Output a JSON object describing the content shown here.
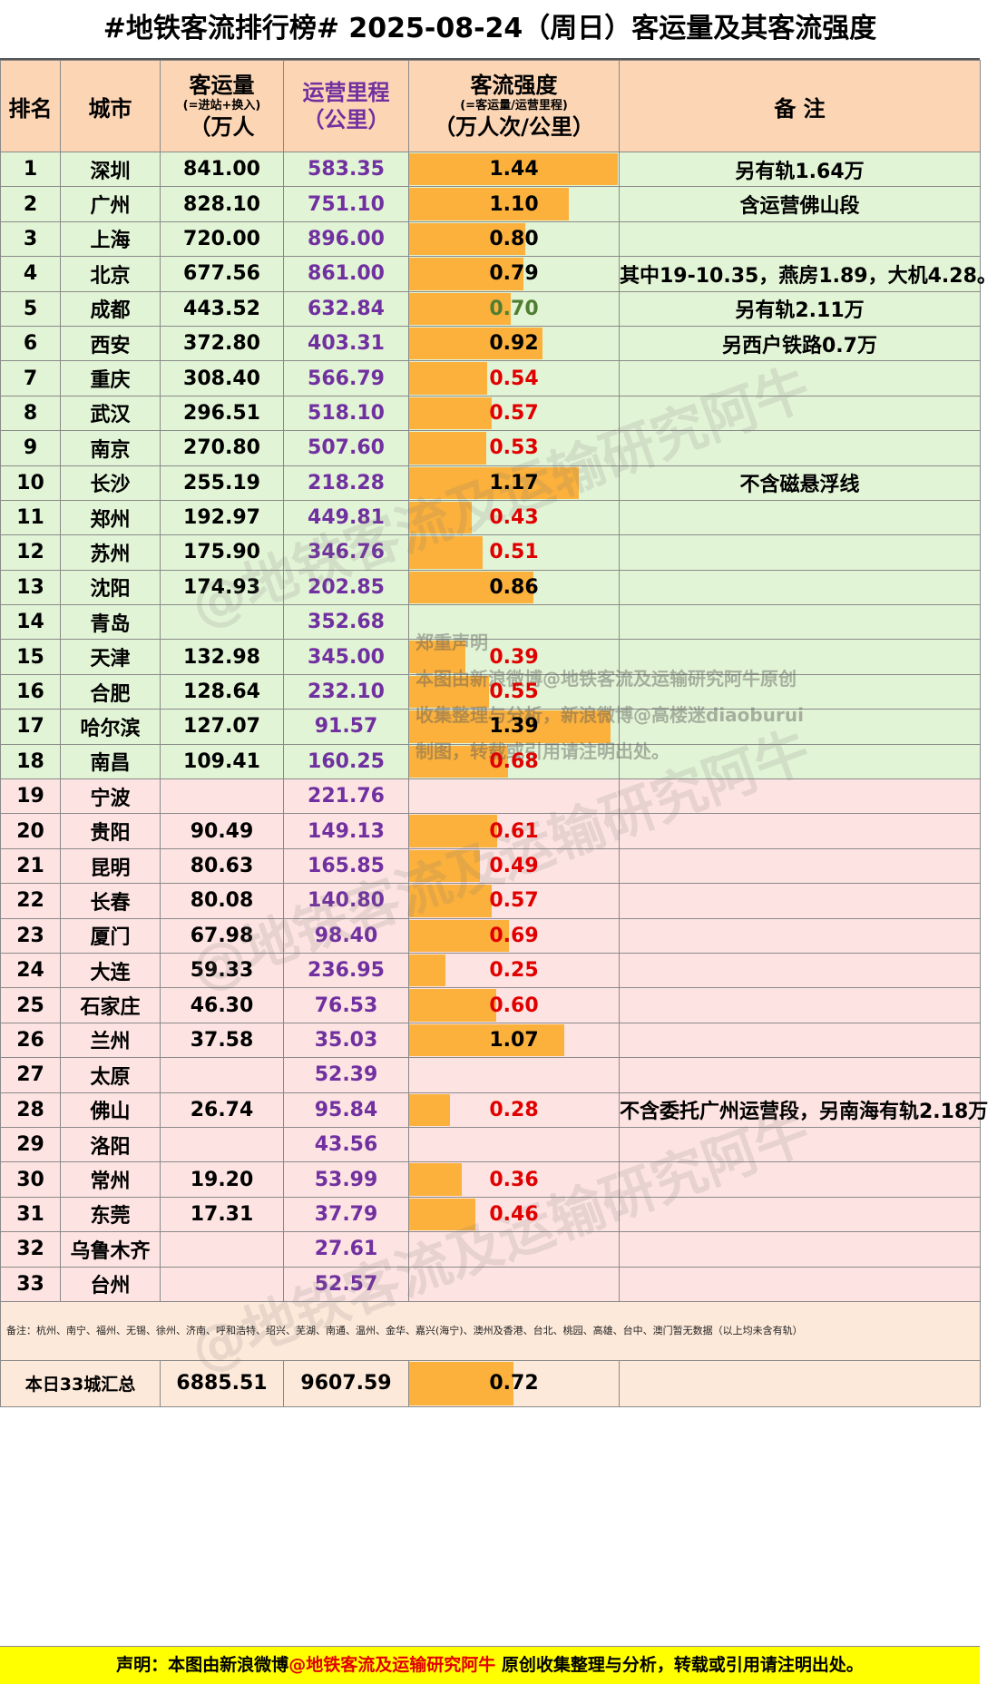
{
  "title": "#地铁客流排行榜# 2025-08-24（周日）客运量及其客流强度",
  "headers": {
    "rank": "排名",
    "city": "城市",
    "volume_main": "客运量",
    "volume_sub": "(=进站+换入)",
    "volume_unit": "（万人",
    "mileage_main": "运营里程",
    "mileage_unit": "（公里）",
    "intensity_main": "客流强度",
    "intensity_sub": "(=客运量/运营里程)",
    "intensity_unit": "（万人次/公里）",
    "note": "备  注"
  },
  "rows": [
    {
      "rank": "1",
      "city": "深圳",
      "volume": "841.00",
      "mileage": "583.35",
      "intensity": "1.44",
      "level": "hi",
      "note": "另有轨1.64万"
    },
    {
      "rank": "2",
      "city": "广州",
      "volume": "828.10",
      "mileage": "751.10",
      "intensity": "1.10",
      "level": "hi",
      "note": "含运营佛山段"
    },
    {
      "rank": "3",
      "city": "上海",
      "volume": "720.00",
      "mileage": "896.00",
      "intensity": "0.80",
      "level": "hi",
      "note": ""
    },
    {
      "rank": "4",
      "city": "北京",
      "volume": "677.56",
      "mileage": "861.00",
      "intensity": "0.79",
      "level": "hi",
      "note": "其中19-10.35，燕房1.89，大机4.28。"
    },
    {
      "rank": "5",
      "city": "成都",
      "volume": "443.52",
      "mileage": "632.84",
      "intensity": "0.70",
      "level": "mid",
      "note": "另有轨2.11万"
    },
    {
      "rank": "6",
      "city": "西安",
      "volume": "372.80",
      "mileage": "403.31",
      "intensity": "0.92",
      "level": "hi",
      "note": "另西户铁路0.7万"
    },
    {
      "rank": "7",
      "city": "重庆",
      "volume": "308.40",
      "mileage": "566.79",
      "intensity": "0.54",
      "level": "lo",
      "note": ""
    },
    {
      "rank": "8",
      "city": "武汉",
      "volume": "296.51",
      "mileage": "518.10",
      "intensity": "0.57",
      "level": "lo",
      "note": ""
    },
    {
      "rank": "9",
      "city": "南京",
      "volume": "270.80",
      "mileage": "507.60",
      "intensity": "0.53",
      "level": "lo",
      "note": ""
    },
    {
      "rank": "10",
      "city": "长沙",
      "volume": "255.19",
      "mileage": "218.28",
      "intensity": "1.17",
      "level": "hi",
      "note": "不含磁悬浮线"
    },
    {
      "rank": "11",
      "city": "郑州",
      "volume": "192.97",
      "mileage": "449.81",
      "intensity": "0.43",
      "level": "lo",
      "note": ""
    },
    {
      "rank": "12",
      "city": "苏州",
      "volume": "175.90",
      "mileage": "346.76",
      "intensity": "0.51",
      "level": "lo",
      "note": ""
    },
    {
      "rank": "13",
      "city": "沈阳",
      "volume": "174.93",
      "mileage": "202.85",
      "intensity": "0.86",
      "level": "hi",
      "note": ""
    },
    {
      "rank": "14",
      "city": "青岛",
      "volume": "",
      "mileage": "352.68",
      "intensity": "",
      "level": "hi",
      "note": ""
    },
    {
      "rank": "15",
      "city": "天津",
      "volume": "132.98",
      "mileage": "345.00",
      "intensity": "0.39",
      "level": "lo",
      "note": ""
    },
    {
      "rank": "16",
      "city": "合肥",
      "volume": "128.64",
      "mileage": "232.10",
      "intensity": "0.55",
      "level": "lo",
      "note": ""
    },
    {
      "rank": "17",
      "city": "哈尔滨",
      "volume": "127.07",
      "mileage": "91.57",
      "intensity": "1.39",
      "level": "hi",
      "note": ""
    },
    {
      "rank": "18",
      "city": "南昌",
      "volume": "109.41",
      "mileage": "160.25",
      "intensity": "0.68",
      "level": "lo",
      "note": ""
    },
    {
      "rank": "19",
      "city": "宁波",
      "volume": "",
      "mileage": "221.76",
      "intensity": "",
      "level": "hi",
      "note": ""
    },
    {
      "rank": "20",
      "city": "贵阳",
      "volume": "90.49",
      "mileage": "149.13",
      "intensity": "0.61",
      "level": "lo",
      "note": ""
    },
    {
      "rank": "21",
      "city": "昆明",
      "volume": "80.63",
      "mileage": "165.85",
      "intensity": "0.49",
      "level": "lo",
      "note": ""
    },
    {
      "rank": "22",
      "city": "长春",
      "volume": "80.08",
      "mileage": "140.80",
      "intensity": "0.57",
      "level": "lo",
      "note": ""
    },
    {
      "rank": "23",
      "city": "厦门",
      "volume": "67.98",
      "mileage": "98.40",
      "intensity": "0.69",
      "level": "lo",
      "note": ""
    },
    {
      "rank": "24",
      "city": "大连",
      "volume": "59.33",
      "mileage": "236.95",
      "intensity": "0.25",
      "level": "lo",
      "note": ""
    },
    {
      "rank": "25",
      "city": "石家庄",
      "volume": "46.30",
      "mileage": "76.53",
      "intensity": "0.60",
      "level": "lo",
      "note": ""
    },
    {
      "rank": "26",
      "city": "兰州",
      "volume": "37.58",
      "mileage": "35.03",
      "intensity": "1.07",
      "level": "hi",
      "note": ""
    },
    {
      "rank": "27",
      "city": "太原",
      "volume": "",
      "mileage": "52.39",
      "intensity": "",
      "level": "hi",
      "note": ""
    },
    {
      "rank": "28",
      "city": "佛山",
      "volume": "26.74",
      "mileage": "95.84",
      "intensity": "0.28",
      "level": "lo",
      "note": "不含委托广州运营段，另南海有轨2.18万"
    },
    {
      "rank": "29",
      "city": "洛阳",
      "volume": "",
      "mileage": "43.56",
      "intensity": "",
      "level": "hi",
      "note": ""
    },
    {
      "rank": "30",
      "city": "常州",
      "volume": "19.20",
      "mileage": "53.99",
      "intensity": "0.36",
      "level": "lo",
      "note": ""
    },
    {
      "rank": "31",
      "city": "东莞",
      "volume": "17.31",
      "mileage": "37.79",
      "intensity": "0.46",
      "level": "lo",
      "note": ""
    },
    {
      "rank": "32",
      "city": "乌鲁木齐",
      "volume": "",
      "mileage": "27.61",
      "intensity": "",
      "level": "hi",
      "note": ""
    },
    {
      "rank": "33",
      "city": "台州",
      "volume": "",
      "mileage": "52.57",
      "intensity": "",
      "level": "hi",
      "note": ""
    }
  ],
  "remarks": "备注：杭州、南宁、福州、无锡、徐州、济南、呼和浩特、绍兴、芜湖、南通、温州、金华、嘉兴(海宁)、澳州及香港、台北、桃园、高雄、台中、澳门暂无数据（以上均未含有轨）",
  "summary": {
    "label": "本日33城汇总",
    "volume": "6885.51",
    "mileage": "9607.59",
    "intensity": "0.72"
  },
  "footer": {
    "pre": "声明：本图由新浪微博",
    "handle": "@地铁客流及运输研究阿牛",
    "post": " 原创收集整理与分析，转载或引用请注明出处。"
  },
  "stamp": {
    "line1": "郑重声明",
    "line2": "本图由新浪微博@地铁客流及运输研究阿牛原创",
    "line3": "收集整理与分析，新浪微博@高楼迷diaoburui",
    "line4": "制图，转载或引用请注明出处。"
  },
  "watermark": "@地铁客流及运输研究阿牛",
  "colors": {
    "bar": "#fbb13c",
    "green_row": "#e2f4d6",
    "pink_row": "#fde4e2",
    "header": "#fcd5b4",
    "mileage_text": "#7030a0",
    "low_text": "#e00000",
    "footer_bg": "#ffff00"
  }
}
